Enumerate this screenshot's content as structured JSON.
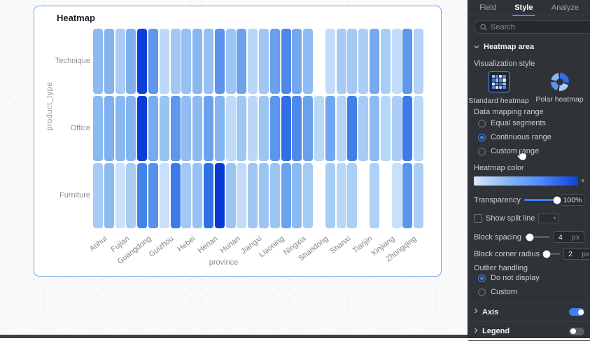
{
  "chart_data": {
    "type": "heatmap",
    "title": "Heatmap",
    "xlabel": "province",
    "ylabel": "product_type",
    "x_categories": [
      "Anhui",
      "Fujian",
      "Guangdong",
      "Guizhou",
      "Hebei",
      "Henan",
      "Hunan",
      "Jiangxi",
      "Liaoning",
      "Ningxia",
      "Shandong",
      "Shanxi",
      "Tianjin",
      "Xinjiang",
      "Zhongqing"
    ],
    "y_categories": [
      "Technique",
      "Office",
      "Furniture"
    ],
    "bars_per_category": 2,
    "color_scale": [
      "#dbe7fb",
      "#0b41d8"
    ],
    "legend_visible": false,
    "series": [
      {
        "name": "Technique",
        "cell_colors": [
          "#8cbaf1",
          "#84b4f0",
          "#a9cbf5",
          "#7fb0ee",
          "#0b41d8",
          "#5f97eb",
          "#bdd8f8",
          "#a2c7f4",
          "#97c1f3",
          "#87b7f0",
          "#96c0f3",
          "#5c94eb",
          "#9ec6f4",
          "#6da3ed",
          "#b9d7f8",
          "#a0c7f4",
          "#69a0ed",
          "#4f87e9",
          "#74a7ef",
          "#8fbcf2",
          null,
          "#c3dbf9",
          "#a6cbf5",
          "#a3c9f4",
          "#accef6",
          "#77a9ef",
          "#a8cdf5",
          "#c3dcf9",
          "#5e97eb",
          "#b2d3f7"
        ]
      },
      {
        "name": "Office",
        "cell_colors": [
          "#8abaf1",
          "#7cb0ef",
          "#88b8f0",
          "#84b4f0",
          "#0a3cd6",
          "#76abef",
          "#98c3f3",
          "#5e97ec",
          "#90bdf2",
          "#8cbaf1",
          "#6ba1ee",
          "#85b5f0",
          "#c0dbf9",
          "#a0c7f4",
          "#b9d8f8",
          "#9dc5f3",
          "#5b95ec",
          "#2f6fe4",
          "#4d89ea",
          "#69a1ed",
          "#b8d8f8",
          "#71a7ef",
          "#b4d4f7",
          "#4080e8",
          "#a6cbf5",
          "#8cbaf1",
          "#b7d7f8",
          "#aacef6",
          "#3d7ce8",
          "#b8d9f8"
        ]
      },
      {
        "name": "Furniture",
        "cell_colors": [
          "#a7cbf5",
          "#8bbaf1",
          "#cbe0fa",
          "#a9cdf5",
          "#4384e8",
          "#5590ea",
          "#c9dffa",
          "#3b7ae8",
          "#a2c8f4",
          "#97c2f3",
          "#2e71e4",
          "#0839d4",
          "#9cc4f3",
          "#c2dbf9",
          "#9fc6f4",
          "#9dc5f3",
          "#9cc4f3",
          "#6ba2ed",
          "#8abaf1",
          "#a5cbf5",
          null,
          "#a8cdf5",
          "#b9d8f8",
          "#abcff6",
          null,
          "#aed0f6",
          null,
          "#c8e0fa",
          "#5a94ec",
          "#a9cdf5"
        ]
      }
    ]
  },
  "panel": {
    "tabs": [
      {
        "label": "Field",
        "active": false
      },
      {
        "label": "Style",
        "active": true
      },
      {
        "label": "Analyze",
        "active": false
      }
    ],
    "search": {
      "placeholder": "Search"
    },
    "heatmap_area": {
      "title": "Heatmap area",
      "visualization_style_label": "Visualization style",
      "styles": [
        {
          "label": "Standard heatmap",
          "selected": true
        },
        {
          "label": "Polar heatmap",
          "selected": false
        }
      ],
      "data_mapping_label": "Data mapping range",
      "mapping_options": [
        {
          "label": "Equal segments",
          "selected": false
        },
        {
          "label": "Continuous range",
          "selected": true
        },
        {
          "label": "Custom range",
          "selected": false
        }
      ],
      "heatmap_color_label": "Heatmap color",
      "transparency_label": "Transparency",
      "transparency_value": "100%",
      "show_split_line_label": "Show split line",
      "block_spacing_label": "Block spacing",
      "block_spacing_value": "4",
      "block_spacing_unit": "px",
      "block_corner_label": "Block corner radius",
      "block_corner_value": "2",
      "block_corner_unit": "px",
      "outlier_label": "Outlier handling",
      "outlier_options": [
        {
          "label": "Do not display",
          "selected": true
        },
        {
          "label": "Custom",
          "selected": false
        }
      ]
    },
    "axis_section": {
      "title": "Axis",
      "enabled": true
    },
    "legend_section": {
      "title": "Legend",
      "enabled": false
    }
  },
  "colors": {
    "accent": "#4d88ff",
    "card_border": "#6f9ff0",
    "panel_bg": "#2f3338",
    "gradient_start": "#dbe7fb",
    "gradient_end": "#0b41d8"
  },
  "icons": {
    "search": "search-icon",
    "more": "kebab-menu-icon",
    "section_expand": "chevron-down-icon",
    "section_collapsed": "chevron-right-icon",
    "dropdown": "caret-down-icon",
    "standard_heatmap": "grid-heatmap-icon",
    "polar_heatmap": "polar-heatmap-icon",
    "cursor": "hand-pointer-cursor"
  }
}
